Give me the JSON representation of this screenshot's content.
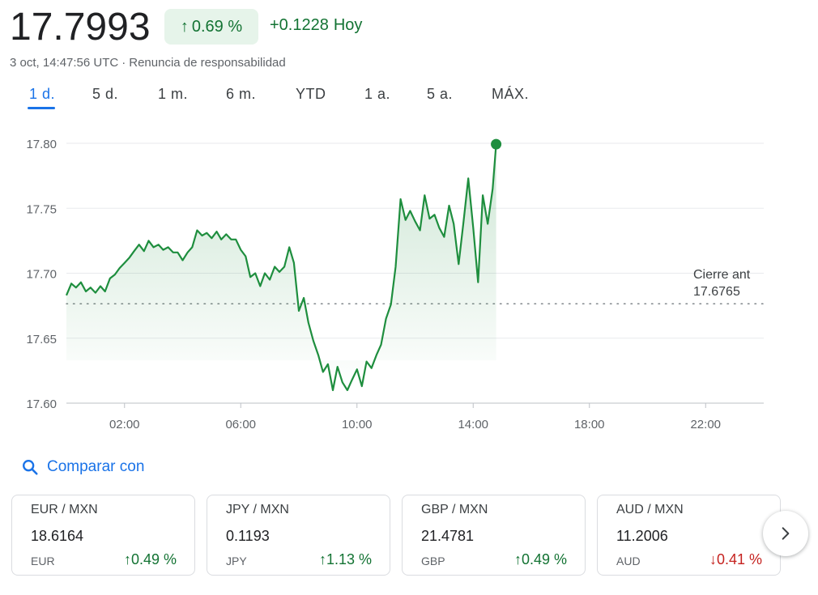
{
  "header": {
    "price": "17.7993",
    "change_percent": "0.69 %",
    "change_absolute": "+0.1228",
    "change_period": "Hoy",
    "timestamp": "3 oct, 14:47:56 UTC",
    "separator": "·",
    "disclaimer": "Renuncia de responsabilidad"
  },
  "tabs": [
    {
      "label": "1 d.",
      "active": true
    },
    {
      "label": "5 d.",
      "active": false
    },
    {
      "label": "1 m.",
      "active": false
    },
    {
      "label": "6 m.",
      "active": false
    },
    {
      "label": "YTD",
      "active": false
    },
    {
      "label": "1 a.",
      "active": false
    },
    {
      "label": "5 a.",
      "active": false
    },
    {
      "label": "MÁX.",
      "active": false
    }
  ],
  "chart_data": {
    "type": "area",
    "xlabel": "",
    "ylabel": "",
    "x_ticks": [
      "02:00",
      "06:00",
      "10:00",
      "14:00",
      "18:00",
      "22:00"
    ],
    "y_ticks": [
      "17.80",
      "17.75",
      "17.70",
      "17.65",
      "17.60"
    ],
    "ylim": [
      17.6,
      17.8
    ],
    "xlim_hours": [
      0,
      24
    ],
    "grid": true,
    "previous_close_label": "Cierre ant",
    "previous_close_value": "17.6765",
    "previous_close": 17.6765,
    "line_color": "#1e8e3e",
    "series": [
      {
        "points": [
          [
            0.0,
            17.683
          ],
          [
            0.17,
            17.692
          ],
          [
            0.33,
            17.689
          ],
          [
            0.5,
            17.693
          ],
          [
            0.67,
            17.686
          ],
          [
            0.83,
            17.689
          ],
          [
            1.0,
            17.685
          ],
          [
            1.17,
            17.69
          ],
          [
            1.33,
            17.686
          ],
          [
            1.5,
            17.696
          ],
          [
            1.67,
            17.699
          ],
          [
            1.83,
            17.704
          ],
          [
            2.0,
            17.708
          ],
          [
            2.17,
            17.712
          ],
          [
            2.33,
            17.717
          ],
          [
            2.5,
            17.722
          ],
          [
            2.67,
            17.717
          ],
          [
            2.83,
            17.725
          ],
          [
            3.0,
            17.72
          ],
          [
            3.17,
            17.722
          ],
          [
            3.33,
            17.718
          ],
          [
            3.5,
            17.72
          ],
          [
            3.67,
            17.716
          ],
          [
            3.83,
            17.716
          ],
          [
            4.0,
            17.71
          ],
          [
            4.17,
            17.716
          ],
          [
            4.33,
            17.72
          ],
          [
            4.5,
            17.733
          ],
          [
            4.67,
            17.729
          ],
          [
            4.83,
            17.731
          ],
          [
            5.0,
            17.727
          ],
          [
            5.17,
            17.732
          ],
          [
            5.33,
            17.726
          ],
          [
            5.5,
            17.73
          ],
          [
            5.67,
            17.726
          ],
          [
            5.83,
            17.726
          ],
          [
            6.0,
            17.718
          ],
          [
            6.17,
            17.713
          ],
          [
            6.33,
            17.697
          ],
          [
            6.5,
            17.7
          ],
          [
            6.67,
            17.69
          ],
          [
            6.83,
            17.7
          ],
          [
            7.0,
            17.695
          ],
          [
            7.17,
            17.705
          ],
          [
            7.33,
            17.701
          ],
          [
            7.5,
            17.705
          ],
          [
            7.67,
            17.72
          ],
          [
            7.83,
            17.708
          ],
          [
            8.0,
            17.671
          ],
          [
            8.17,
            17.681
          ],
          [
            8.33,
            17.662
          ],
          [
            8.5,
            17.648
          ],
          [
            8.67,
            17.637
          ],
          [
            8.83,
            17.624
          ],
          [
            9.0,
            17.63
          ],
          [
            9.17,
            17.61
          ],
          [
            9.33,
            17.628
          ],
          [
            9.5,
            17.616
          ],
          [
            9.67,
            17.61
          ],
          [
            9.83,
            17.618
          ],
          [
            10.0,
            17.626
          ],
          [
            10.17,
            17.613
          ],
          [
            10.33,
            17.632
          ],
          [
            10.5,
            17.627
          ],
          [
            10.67,
            17.637
          ],
          [
            10.83,
            17.645
          ],
          [
            11.0,
            17.665
          ],
          [
            11.17,
            17.676
          ],
          [
            11.33,
            17.705
          ],
          [
            11.5,
            17.757
          ],
          [
            11.67,
            17.741
          ],
          [
            11.83,
            17.748
          ],
          [
            12.0,
            17.74
          ],
          [
            12.17,
            17.733
          ],
          [
            12.33,
            17.76
          ],
          [
            12.5,
            17.742
          ],
          [
            12.67,
            17.745
          ],
          [
            12.83,
            17.735
          ],
          [
            13.0,
            17.728
          ],
          [
            13.17,
            17.752
          ],
          [
            13.33,
            17.738
          ],
          [
            13.5,
            17.707
          ],
          [
            13.67,
            17.74
          ],
          [
            13.83,
            17.773
          ],
          [
            14.0,
            17.735
          ],
          [
            14.17,
            17.693
          ],
          [
            14.33,
            17.76
          ],
          [
            14.5,
            17.738
          ],
          [
            14.67,
            17.765
          ],
          [
            14.79,
            17.7993
          ]
        ]
      }
    ]
  },
  "compare": {
    "icon": "search-icon",
    "label": "Comparar con"
  },
  "cards": [
    {
      "pair": "EUR / MXN",
      "value": "18.6164",
      "currency": "EUR",
      "change": "0.49 %",
      "direction": "up"
    },
    {
      "pair": "JPY / MXN",
      "value": "0.1193",
      "currency": "JPY",
      "change": "1.13 %",
      "direction": "up"
    },
    {
      "pair": "GBP / MXN",
      "value": "21.4781",
      "currency": "GBP",
      "change": "0.49 %",
      "direction": "up"
    },
    {
      "pair": "AUD / MXN",
      "value": "11.2006",
      "currency": "AUD",
      "change": "0.41 %",
      "direction": "down"
    }
  ],
  "colors": {
    "positive": "#137333",
    "negative": "#c5221f",
    "accent": "#1a73e8",
    "positive_bg": "#e6f4ea"
  },
  "next_button": {
    "icon": "chevron-right-icon"
  }
}
